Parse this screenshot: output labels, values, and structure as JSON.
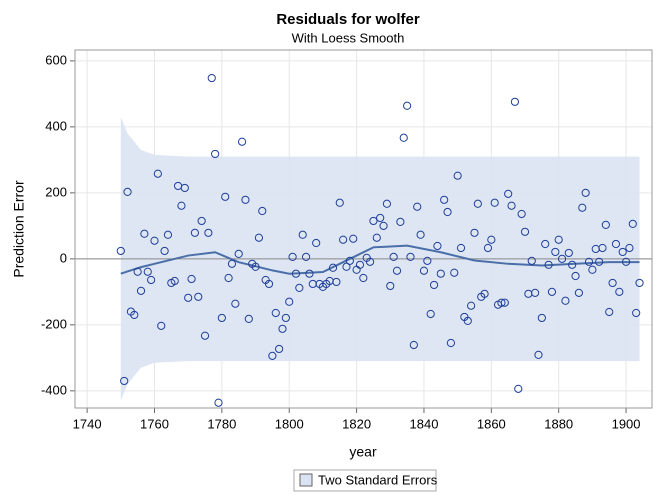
{
  "chart_data": {
    "type": "scatter",
    "title": "Residuals for wolfer",
    "subtitle": "With Loess Smooth",
    "x_label": "year",
    "y_label": "Prediction Error",
    "xlim": [
      1736.4,
      1907.7
    ],
    "ylim": [
      -452,
      633
    ],
    "xticks": [
      1740,
      1760,
      1780,
      1800,
      1820,
      1840,
      1860,
      1880,
      1900
    ],
    "yticks": [
      -400,
      -200,
      0,
      200,
      400,
      600
    ],
    "grid": true,
    "reference_line": 0,
    "point_color": "#1f3f99",
    "x": [
      1750,
      1751,
      1752,
      1753,
      1754,
      1755,
      1756,
      1757,
      1758,
      1759,
      1760,
      1761,
      1762,
      1763,
      1764,
      1765,
      1766,
      1767,
      1768,
      1769,
      1770,
      1771,
      1772,
      1773,
      1774,
      1775,
      1776,
      1777,
      1778,
      1779,
      1780,
      1781,
      1782,
      1783,
      1784,
      1785,
      1786,
      1787,
      1788,
      1789,
      1790,
      1791,
      1792,
      1793,
      1794,
      1795,
      1796,
      1797,
      1798,
      1799,
      1800,
      1801,
      1802,
      1803,
      1804,
      1805,
      1806,
      1807,
      1808,
      1809,
      1810,
      1811,
      1812,
      1813,
      1814,
      1815,
      1816,
      1817,
      1818,
      1819,
      1820,
      1821,
      1822,
      1823,
      1824,
      1825,
      1826,
      1827,
      1828,
      1829,
      1830,
      1831,
      1832,
      1833,
      1834,
      1835,
      1836,
      1837,
      1838,
      1839,
      1840,
      1841,
      1842,
      1843,
      1844,
      1845,
      1846,
      1847,
      1848,
      1849,
      1850,
      1851,
      1852,
      1853,
      1854,
      1855,
      1856,
      1857,
      1858,
      1859,
      1860,
      1861,
      1862,
      1863,
      1864,
      1865,
      1866,
      1867,
      1868,
      1869,
      1870,
      1871,
      1872,
      1873,
      1874,
      1875,
      1876,
      1877,
      1878,
      1879,
      1880,
      1881,
      1882,
      1883,
      1884,
      1885,
      1886,
      1887,
      1888,
      1889,
      1890,
      1891,
      1892,
      1893,
      1894,
      1895,
      1896,
      1897,
      1898,
      1899,
      1900,
      1901,
      1902,
      1903,
      1904
    ],
    "values": [
      24,
      -370,
      203,
      -160,
      -170,
      -39,
      -97,
      76,
      -39,
      -64,
      55,
      258,
      -203,
      24,
      73,
      -73,
      -67,
      221,
      161,
      215,
      -118,
      -61,
      79,
      -115,
      115,
      -233,
      79,
      548,
      318,
      -436,
      -179,
      188,
      -58,
      -15,
      -136,
      15,
      355,
      179,
      -182,
      -15,
      -24,
      64,
      145,
      -64,
      -76,
      -294,
      -164,
      -273,
      -212,
      -179,
      -130,
      6,
      -45,
      -88,
      73,
      6,
      -45,
      -76,
      48,
      -76,
      -85,
      -76,
      -67,
      -27,
      -70,
      170,
      58,
      -24,
      -6,
      61,
      -33,
      -18,
      -58,
      3,
      -9,
      115,
      64,
      124,
      100,
      167,
      -82,
      6,
      -36,
      112,
      367,
      464,
      6,
      -261,
      158,
      73,
      -36,
      -6,
      -167,
      -79,
      39,
      -45,
      179,
      142,
      -255,
      -42,
      252,
      33,
      -176,
      -188,
      -142,
      79,
      167,
      -115,
      -106,
      33,
      58,
      170,
      -139,
      -133,
      -133,
      197,
      161,
      476,
      -394,
      136,
      82,
      -106,
      -6,
      -103,
      -291,
      -179,
      45,
      -18,
      -100,
      21,
      58,
      0,
      -127,
      18,
      -18,
      -52,
      -103,
      155,
      200,
      -9,
      -33,
      30,
      -9,
      33,
      103,
      -161,
      -73,
      45,
      -100,
      21,
      -9,
      33,
      106,
      -164,
      -73
    ],
    "loess": {
      "color": "#4a6ea8",
      "x": [
        1750,
        1752,
        1756,
        1760,
        1770,
        1778,
        1785,
        1795,
        1800,
        1810,
        1815,
        1820,
        1825,
        1835,
        1845,
        1855,
        1865,
        1875,
        1885,
        1895,
        1904
      ],
      "values": [
        -45,
        -38,
        -25,
        -15,
        10,
        20,
        -10,
        -35,
        -45,
        -40,
        -15,
        10,
        35,
        40,
        20,
        -5,
        -15,
        -20,
        -15,
        -10,
        -10
      ]
    },
    "band": {
      "name": "Two Standard Errors",
      "color": "#dae3f3",
      "x": [
        1750,
        1752,
        1756,
        1760,
        1770,
        1778,
        1785,
        1795,
        1800,
        1810,
        1815,
        1820,
        1825,
        1835,
        1845,
        1855,
        1865,
        1875,
        1885,
        1895,
        1904
      ],
      "upper": [
        430,
        380,
        330,
        315,
        310,
        310,
        310,
        310,
        310,
        310,
        310,
        310,
        310,
        310,
        310,
        310,
        310,
        310,
        310,
        310,
        310
      ],
      "lower": [
        -430,
        -380,
        -330,
        -315,
        -310,
        -310,
        -310,
        -310,
        -310,
        -310,
        -310,
        -310,
        -310,
        -310,
        -310,
        -310,
        -310,
        -310,
        -310,
        -310,
        -310
      ]
    }
  }
}
